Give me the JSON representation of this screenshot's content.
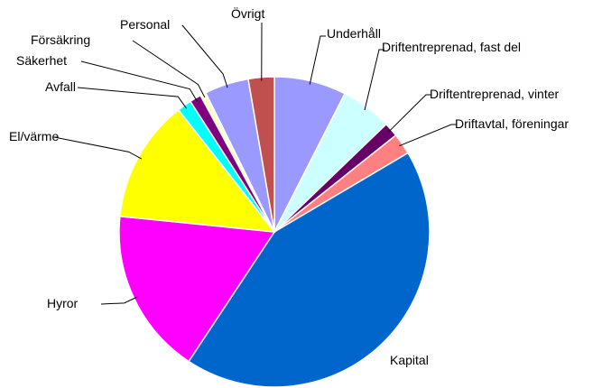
{
  "chart_data": {
    "type": "pie",
    "categories": [
      "Underhåll",
      "Driftentreprenad, fast del",
      "Driftentreprenad, vinter",
      "Driftavtal, föreningar",
      "Kapital",
      "Hyror",
      "El/värme",
      "Avfall",
      "Säkerhet",
      "Försäkring",
      "Personal",
      "Övrigt"
    ],
    "values": [
      7.5,
      5.3,
      1.5,
      2.2,
      42.8,
      17.3,
      12.8,
      1.5,
      1.2,
      0.6,
      4.6,
      2.7
    ],
    "colors": [
      "#9999ff",
      "#ccffff",
      "#660066",
      "#ff8080",
      "#0066cc",
      "#ff00ff",
      "#ffff00",
      "#00ffff",
      "#800080",
      "#ffffcc",
      "#9999ff",
      "#c0504d"
    ]
  }
}
